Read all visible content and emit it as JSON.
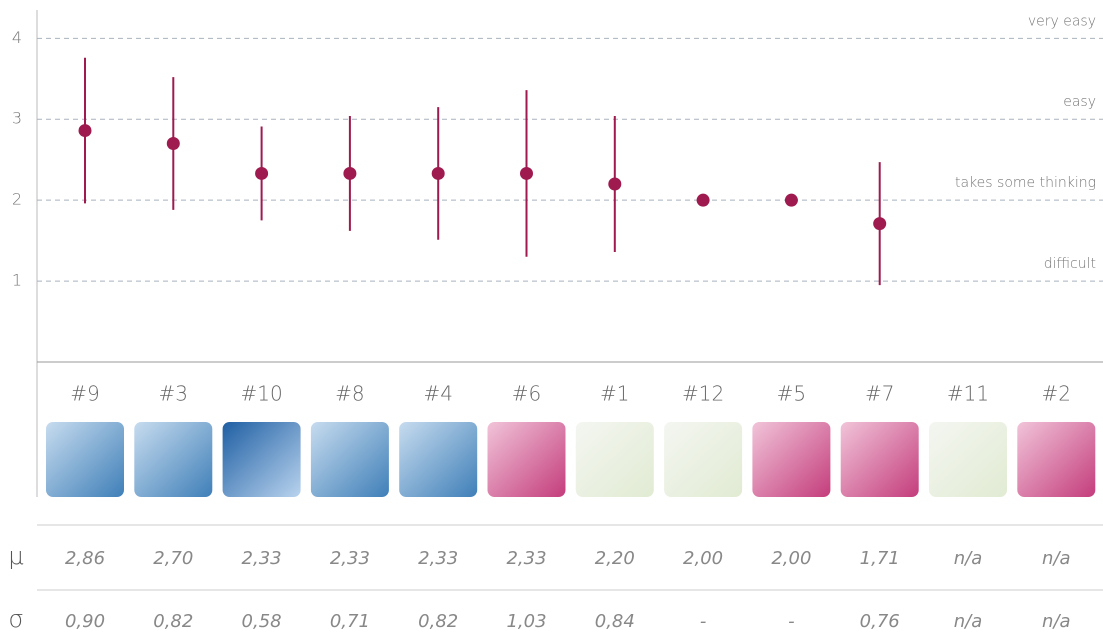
{
  "chart_data": {
    "type": "dot_errorbar",
    "categories": [
      "#9",
      "#3",
      "#10",
      "#8",
      "#4",
      "#6",
      "#1",
      "#12",
      "#5",
      "#7",
      "#11",
      "#2"
    ],
    "series": [
      {
        "name": "μ",
        "color": "#9e1a4f",
        "values": [
          2.86,
          2.7,
          2.33,
          2.33,
          2.33,
          2.33,
          2.2,
          2.0,
          2.0,
          1.71,
          null,
          null
        ],
        "value_labels": [
          "2,86",
          "2,70",
          "2,33",
          "2,33",
          "2,33",
          "2,33",
          "2,20",
          "2,00",
          "2,00",
          "1,71",
          "n/a",
          "n/a"
        ]
      },
      {
        "name": "σ",
        "values": [
          0.9,
          0.82,
          0.58,
          0.71,
          0.82,
          1.03,
          0.84,
          null,
          null,
          0.76,
          null,
          null
        ],
        "value_labels": [
          "0,90",
          "0,82",
          "0,58",
          "0,71",
          "0,82",
          "1,03",
          "0,84",
          "-",
          "-",
          "0,76",
          "n/a",
          "n/a"
        ]
      }
    ],
    "ylim": [
      0,
      4.35
    ],
    "yticks": [
      1,
      2,
      3,
      4
    ],
    "ytick_right_labels": [
      "difficult",
      "takes some thinking",
      "easy",
      "very easy"
    ],
    "grid": true
  }
}
